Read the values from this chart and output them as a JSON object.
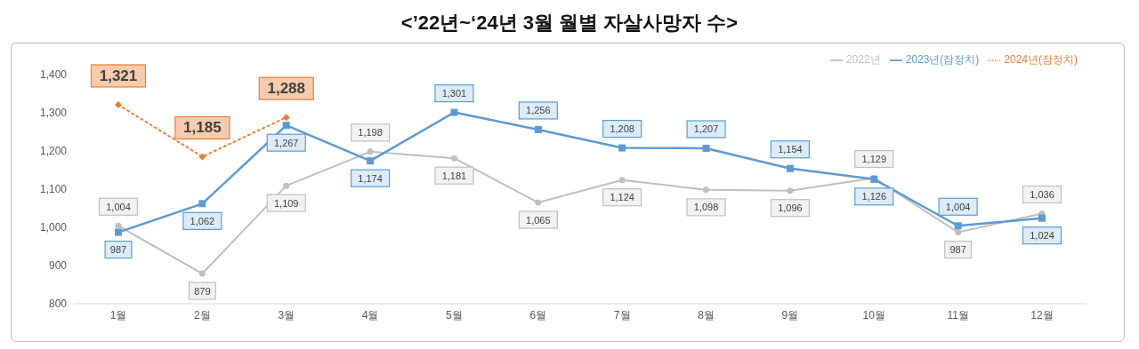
{
  "chart_data": {
    "type": "line",
    "title": "<’22년~‘24년 3월 월별 자살사망자 수>",
    "categories": [
      "1월",
      "2월",
      "3월",
      "4월",
      "5월",
      "6월",
      "7월",
      "8월",
      "9월",
      "10월",
      "11월",
      "12월"
    ],
    "series": [
      {
        "name": "2022년",
        "color": "#bfbfbf",
        "marker": "circle",
        "line_style": "solid",
        "values": [
          1004,
          879,
          1109,
          1198,
          1181,
          1065,
          1124,
          1098,
          1096,
          1129,
          987,
          1036
        ],
        "value_labels": [
          "1,004",
          "879",
          "1,109",
          "1,198",
          "1,181",
          "1,065",
          "1,124",
          "1,098",
          "1,096",
          "1,129",
          "987",
          "1,036"
        ]
      },
      {
        "name": "2023년(잠정치)",
        "color": "#5b9bd5",
        "marker": "square",
        "line_style": "solid",
        "values": [
          987,
          1062,
          1267,
          1174,
          1301,
          1256,
          1208,
          1207,
          1154,
          1126,
          1004,
          1024
        ],
        "value_labels": [
          "987",
          "1,062",
          "1,267",
          "1,174",
          "1,301",
          "1,256",
          "1,208",
          "1,207",
          "1,154",
          "1,126",
          "1,004",
          "1,024"
        ]
      },
      {
        "name": "2024년(잠정치)",
        "color": "#ed7d31",
        "marker": "diamond",
        "line_style": "dotted",
        "values": [
          1321,
          1185,
          1288,
          null,
          null,
          null,
          null,
          null,
          null,
          null,
          null,
          null
        ],
        "value_labels": [
          "1,321",
          "1,185",
          "1,288",
          null,
          null,
          null,
          null,
          null,
          null,
          null,
          null,
          null
        ]
      }
    ],
    "ylim": [
      800,
      1400
    ],
    "yticks": [
      {
        "value": 800,
        "label": "800"
      },
      {
        "value": 900,
        "label": "900"
      },
      {
        "value": 1000,
        "label": "1,000"
      },
      {
        "value": 1100,
        "label": "1,100"
      },
      {
        "value": 1200,
        "label": "1,200"
      },
      {
        "value": 1300,
        "label": "1,300"
      },
      {
        "value": 1400,
        "label": "1,400"
      }
    ],
    "legend": "top right"
  }
}
